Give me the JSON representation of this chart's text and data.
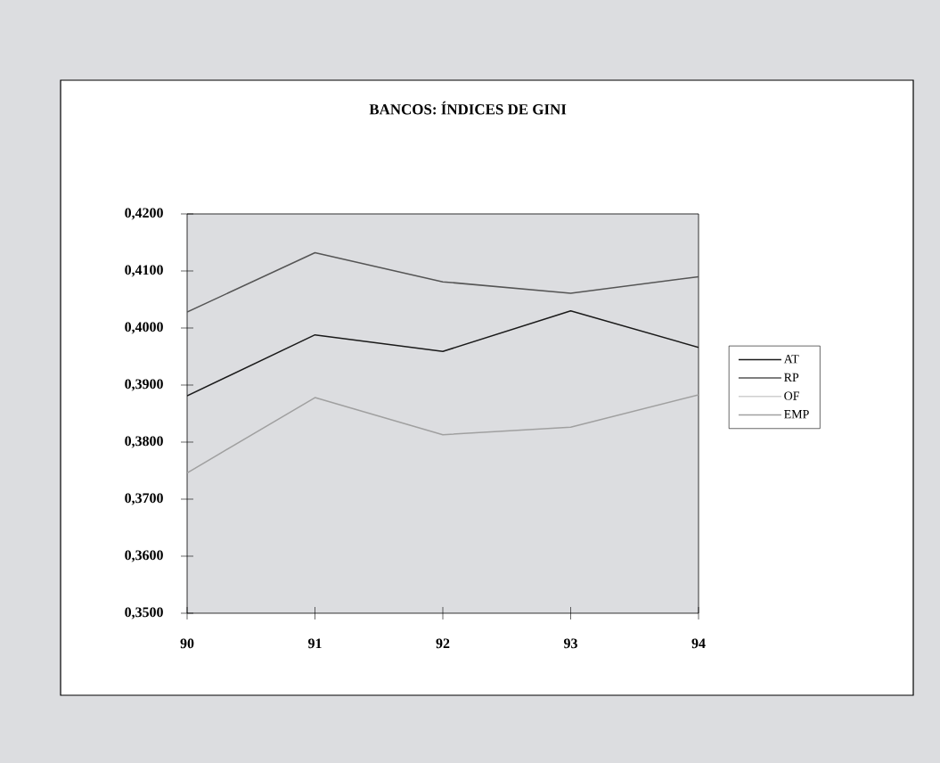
{
  "chart_data": {
    "type": "line",
    "title": "BANCOS: ÍNDICES DE GINI",
    "categories": [
      "90",
      "91",
      "92",
      "93",
      "94"
    ],
    "series": [
      {
        "name": "AT",
        "color": "#1a1a1a",
        "values": [
          0.3881,
          0.3988,
          0.3959,
          0.403,
          0.3966
        ]
      },
      {
        "name": "RP",
        "color": "#555555",
        "values": [
          0.4028,
          0.4132,
          0.4081,
          0.4061,
          0.409
        ]
      },
      {
        "name": "OF",
        "color": "#d0d0d0",
        "values": [
          null,
          null,
          null,
          null,
          null
        ]
      },
      {
        "name": "EMP",
        "color": "#a0a0a0",
        "values": [
          0.3746,
          0.3878,
          0.3813,
          0.3826,
          0.3883
        ]
      }
    ],
    "ylim": [
      0.35,
      0.42
    ],
    "yticks": [
      {
        "value": 0.35,
        "label": "0,3500"
      },
      {
        "value": 0.36,
        "label": "0,3600"
      },
      {
        "value": 0.37,
        "label": "0,3700"
      },
      {
        "value": 0.38,
        "label": "0,3800"
      },
      {
        "value": 0.39,
        "label": "0,3900"
      },
      {
        "value": 0.4,
        "label": "0,4000"
      },
      {
        "value": 0.41,
        "label": "0,4100"
      },
      {
        "value": 0.42,
        "label": "0,4200"
      }
    ],
    "grid": false,
    "legend": "right",
    "marker": "none",
    "line_style": "solid"
  }
}
